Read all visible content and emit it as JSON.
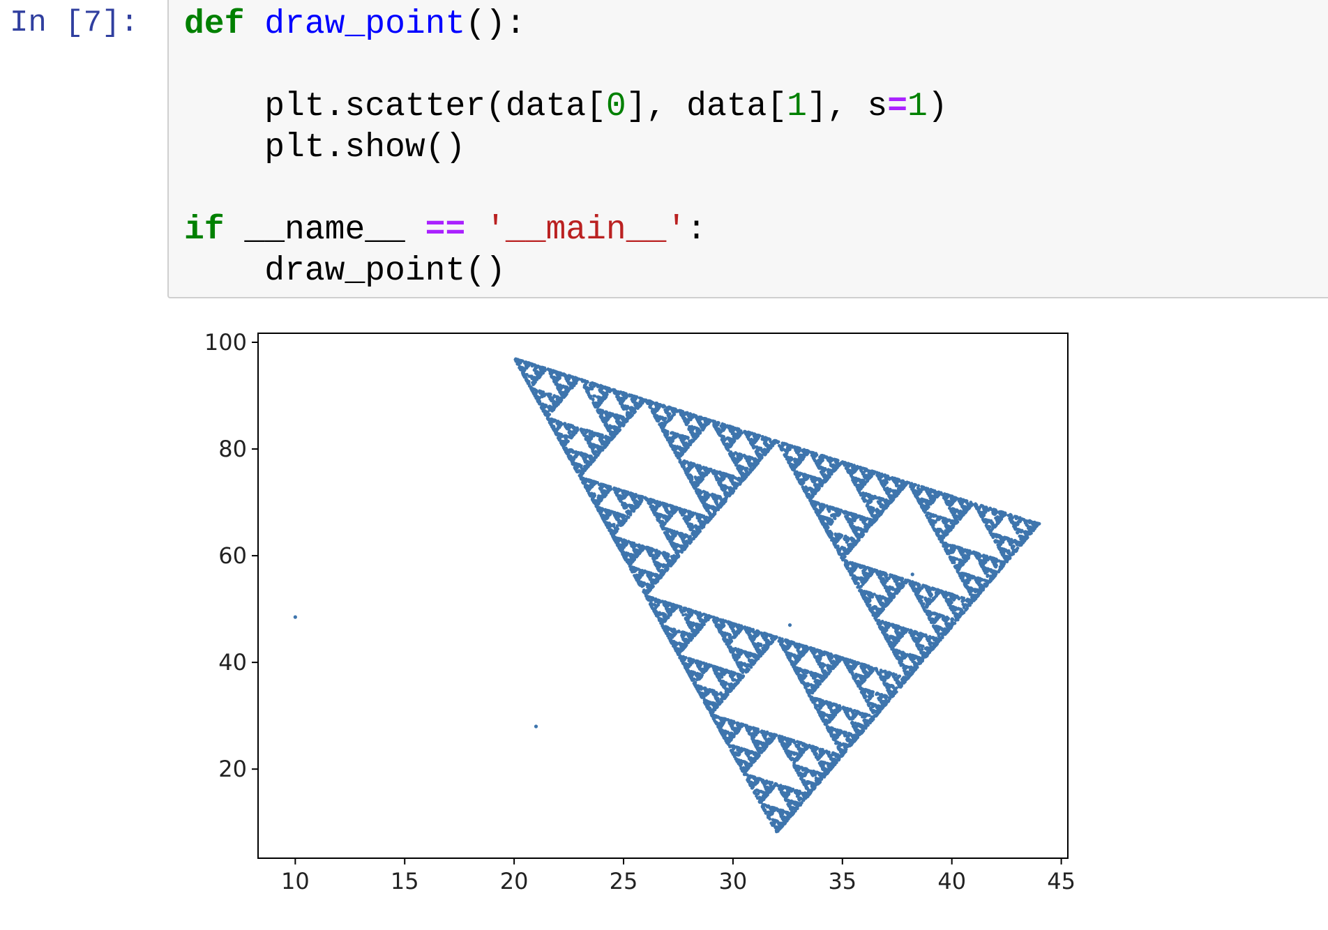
{
  "cell": {
    "prompt": "In [7]:",
    "code": {
      "line1": {
        "kw": "def",
        "fn": "draw_point",
        "rest": "():"
      },
      "line3": {
        "a": "    plt.scatter(data[",
        "n0": "0",
        "b": "], data[",
        "n1": "1",
        "c": "], s",
        "eq": "=",
        "n2": "1",
        "d": ")"
      },
      "line4": "    plt.show()",
      "line6": {
        "kw": "if",
        "a": " __name__ ",
        "op": "==",
        "sp": " ",
        "str": "'__main__'",
        "b": ":"
      },
      "line7": "    draw_point()"
    }
  },
  "chart_data": {
    "type": "scatter",
    "title": "",
    "xlabel": "",
    "ylabel": "",
    "xlim": [
      8.3,
      45.3
    ],
    "ylim": [
      3.3,
      101.7
    ],
    "xticks": [
      "10",
      "15",
      "20",
      "25",
      "30",
      "35",
      "40",
      "45"
    ],
    "yticks": [
      "20",
      "40",
      "60",
      "80",
      "100"
    ],
    "grid": false,
    "marker_size": 1,
    "colors": {
      "points": "#3e75ad",
      "axes": "#000000"
    },
    "series": [
      {
        "description": "Sierpinski triangle generated by chaos game",
        "vertices": [
          [
            20,
            97
          ],
          [
            44,
            66
          ],
          [
            32,
            8
          ]
        ],
        "outliers": [
          [
            10,
            48.5
          ],
          [
            21,
            28
          ],
          [
            32.6,
            47
          ],
          [
            38.2,
            56.5
          ],
          [
            34.5,
            21
          ]
        ]
      }
    ]
  }
}
